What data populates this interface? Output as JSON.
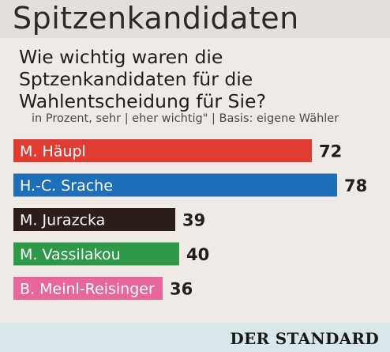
{
  "chart_data": {
    "type": "bar",
    "orientation": "horizontal",
    "title": "Spitzenkandidaten",
    "subtitle": "Wie wichtig waren die Sptzenkandidaten für die Wahlentscheidung für Sie?",
    "note": "in Prozent, sehr | eher wichtig\" | Basis: eigene Wähler",
    "categories": [
      "M. Häupl",
      "H.-C. Srache",
      "M. Jurazcka",
      "M. Vassilakou",
      "B. Meinl-Reisinger"
    ],
    "values": [
      72,
      78,
      39,
      40,
      36
    ],
    "colors": [
      "#e03c33",
      "#1f6fb8",
      "#2b1d19",
      "#2e9a48",
      "#e8669a"
    ],
    "xlim": [
      0,
      78
    ]
  },
  "footer": {
    "logo": "DER STANDARD"
  }
}
